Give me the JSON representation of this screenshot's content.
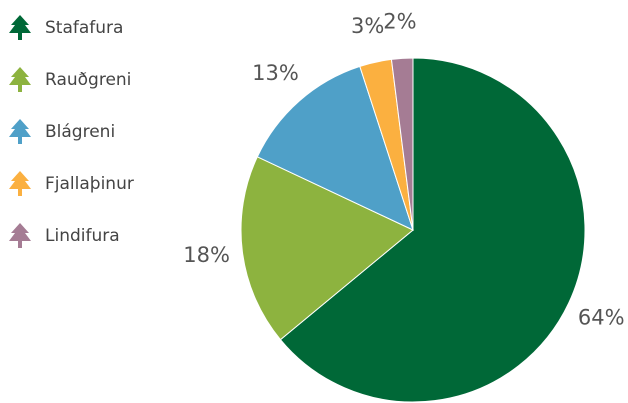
{
  "chart_data": {
    "type": "pie",
    "categories": [
      "Stafafura",
      "Rauðgreni",
      "Blágreni",
      "Fjallaþinur",
      "Lindifura"
    ],
    "values": [
      64,
      18,
      13,
      3,
      2
    ],
    "value_labels": [
      "64%",
      "18%",
      "13%",
      "3%",
      "2%"
    ],
    "colors": [
      "#006837",
      "#8db33f",
      "#4fa0c8",
      "#fbb040",
      "#a57c94"
    ],
    "legend": "upper left"
  }
}
